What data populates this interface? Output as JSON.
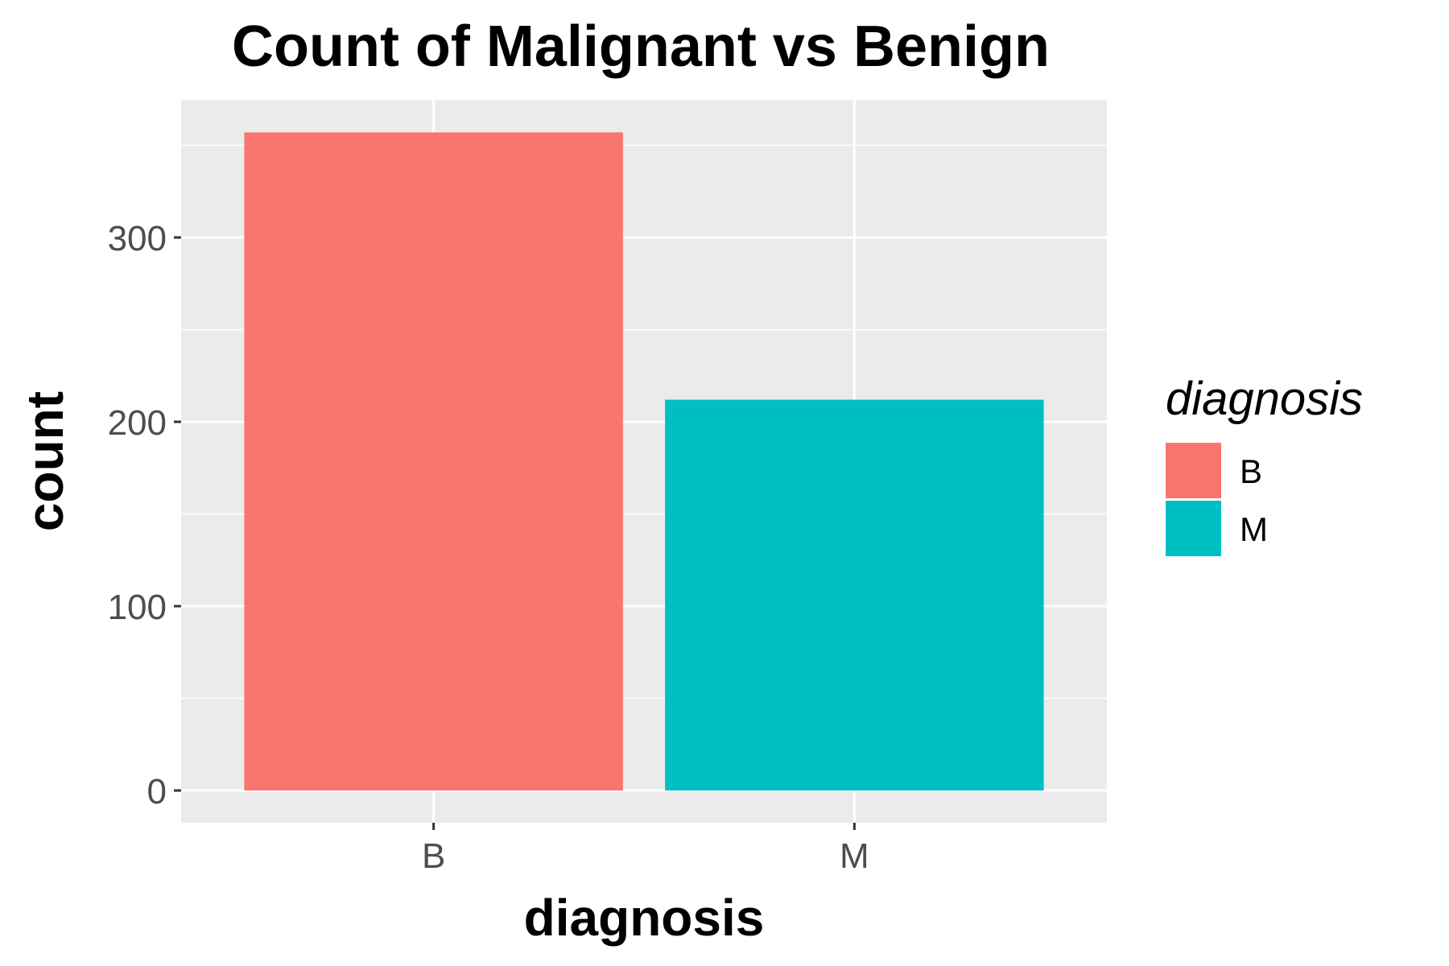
{
  "chart_data": {
    "type": "bar",
    "title": "Count of Malignant vs Benign",
    "xlabel": "diagnosis",
    "ylabel": "count",
    "categories": [
      "B",
      "M"
    ],
    "values": [
      357,
      212
    ],
    "colors": [
      "#f8766d",
      "#00bfc4"
    ],
    "ylim": [
      0,
      375
    ],
    "yticks": [
      0,
      100,
      200,
      300
    ],
    "ytick_labels": [
      "0",
      "100",
      "200",
      "300"
    ],
    "grid": true,
    "legend": {
      "title": "diagnosis",
      "position": "right",
      "entries": [
        "B",
        "M"
      ]
    }
  }
}
